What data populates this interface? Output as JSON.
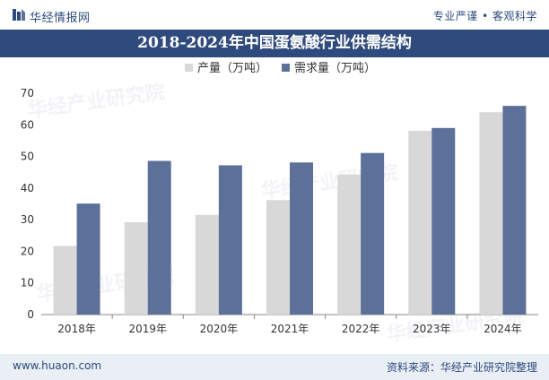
{
  "header": {
    "brand": "华经情报网",
    "tagline": "专业严谨 • 客观科学"
  },
  "chart_data": {
    "type": "bar",
    "title": "2018-2024年中国蛋氨酸行业供需结构",
    "categories": [
      "2018年",
      "2019年",
      "2020年",
      "2021年",
      "2022年",
      "2023年",
      "2024年"
    ],
    "series": [
      {
        "name": "产量（万吨）",
        "color": "#d8d8d8",
        "values": [
          21.7,
          29.2,
          31.5,
          36.2,
          44.3,
          58.1,
          64.0
        ]
      },
      {
        "name": "需求量（万吨）",
        "color": "#5d7099",
        "values": [
          35.1,
          48.6,
          47.2,
          48.1,
          51.1,
          59.0,
          66.0
        ]
      }
    ],
    "ylim": [
      0,
      70
    ],
    "yticks": [
      0,
      10,
      20,
      30,
      40,
      50,
      60,
      70
    ],
    "xlabel": "",
    "ylabel": "",
    "legend_position": "top-center"
  },
  "watermark": {
    "text": "华经产业研究院",
    "url": "www.huaon.com"
  },
  "footer": {
    "site": "www.huaon.com",
    "source": "资料来源：华经产业研究院整理"
  }
}
